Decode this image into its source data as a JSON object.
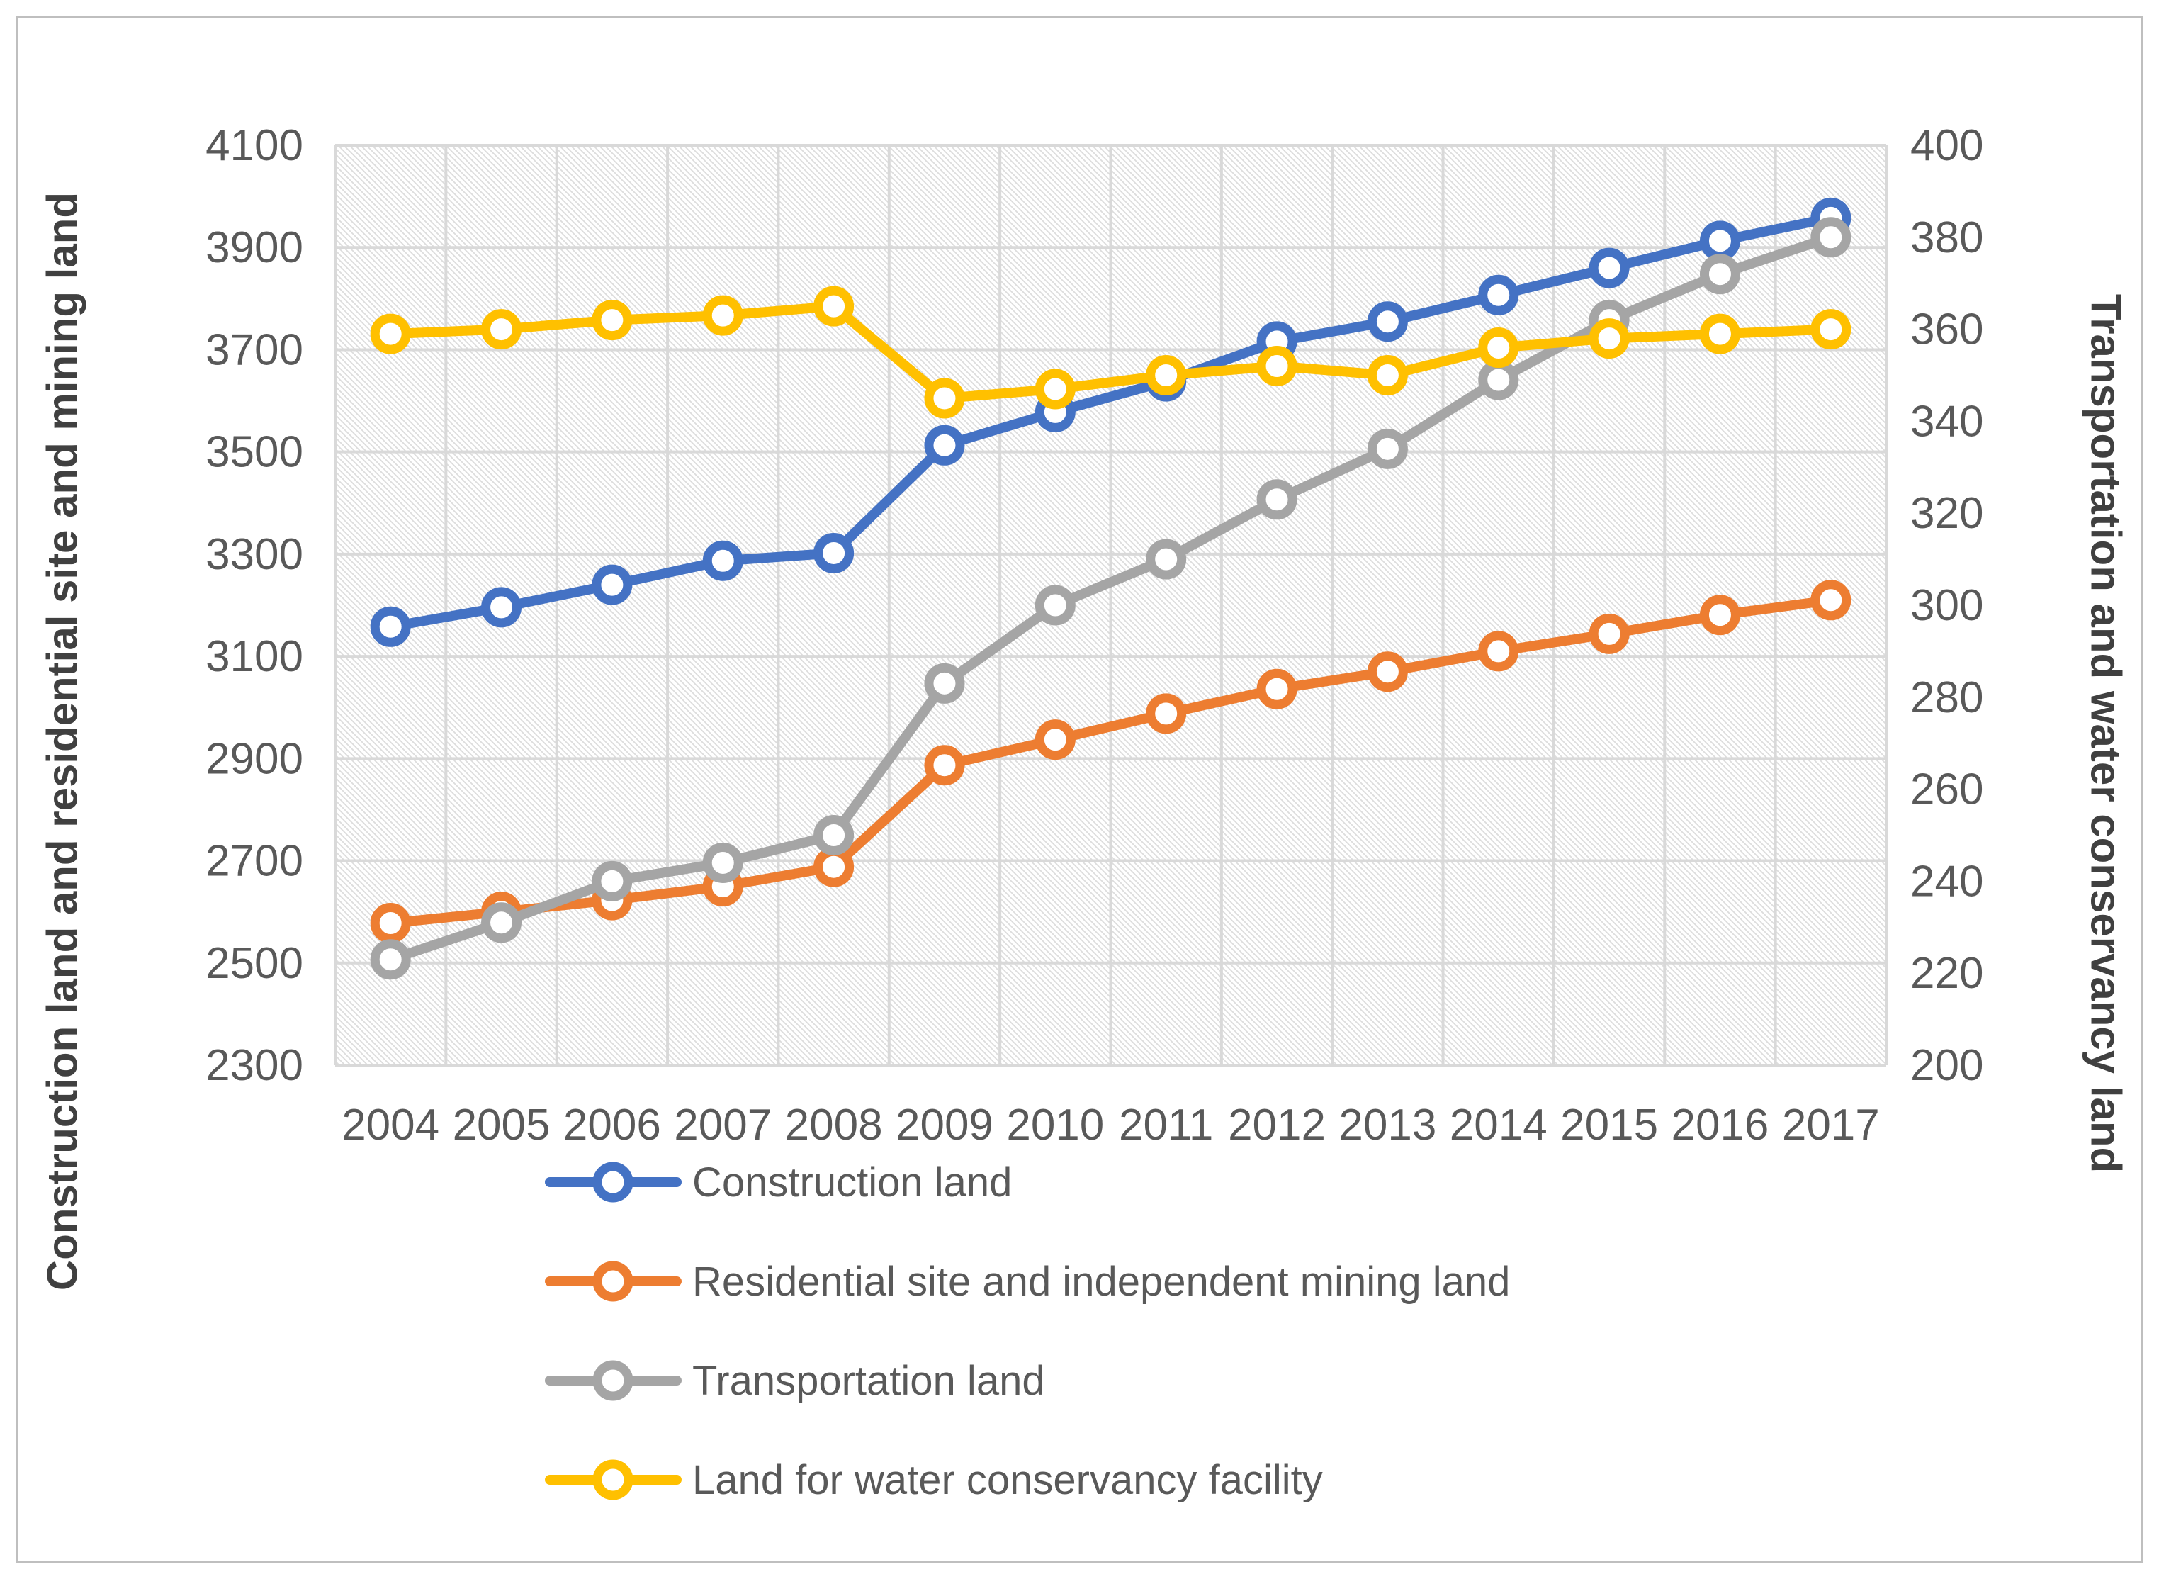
{
  "figure": {
    "background": "#ffffff",
    "border_color": "#bfbfbf"
  },
  "chart_data": {
    "type": "line",
    "categories": [
      "2004",
      "2005",
      "2006",
      "2007",
      "2008",
      "2009",
      "2010",
      "2011",
      "2012",
      "2013",
      "2014",
      "2015",
      "2016",
      "2017"
    ],
    "left_axis": {
      "label": "Construction land and residential site and mining land",
      "min": 2300,
      "max": 4100,
      "step": 200,
      "tick_labels": [
        "4100",
        "3900",
        "3700",
        "3500",
        "3300",
        "3100",
        "2900",
        "2700",
        "2500",
        "2300"
      ]
    },
    "right_axis": {
      "label": "Transportation and water conservancy land",
      "min": 200,
      "max": 400,
      "step": 20,
      "tick_labels": [
        "400",
        "380",
        "360",
        "340",
        "320",
        "300",
        "280",
        "260",
        "240",
        "220",
        "200"
      ]
    },
    "grid": true,
    "legend_position": "bottom-left",
    "series": [
      {
        "name": "Construction land",
        "axis": "left",
        "color": "#4472C4",
        "values": [
          3158,
          3196,
          3240,
          3287,
          3302,
          3513,
          3578,
          3638,
          3716,
          3755,
          3807,
          3860,
          3913,
          3958
        ]
      },
      {
        "name": "Residential site and independent mining land",
        "axis": "left",
        "color": "#ED7D31",
        "values": [
          2578,
          2600,
          2623,
          2650,
          2688,
          2887,
          2937,
          2988,
          3036,
          3070,
          3110,
          3144,
          3181,
          3210
        ]
      },
      {
        "name": "Transportation land",
        "axis": "right",
        "color": "#A5A5A5",
        "values": [
          223,
          231,
          240,
          244,
          250,
          283,
          300,
          310,
          323,
          334,
          349,
          362,
          372,
          380
        ]
      },
      {
        "name": "Land for water conservancy facility",
        "axis": "right",
        "color": "#FFC000",
        "values": [
          359,
          360,
          362,
          363,
          365,
          345,
          347,
          350,
          352,
          350,
          356,
          358,
          359,
          360
        ]
      }
    ],
    "styles": {
      "grid_color": "#d9d9d9",
      "tick_color": "#595959",
      "axis_title_color": "#404040",
      "plot_hatch_color": "#dcdcdc",
      "marker_fill": "#ffffff"
    }
  }
}
